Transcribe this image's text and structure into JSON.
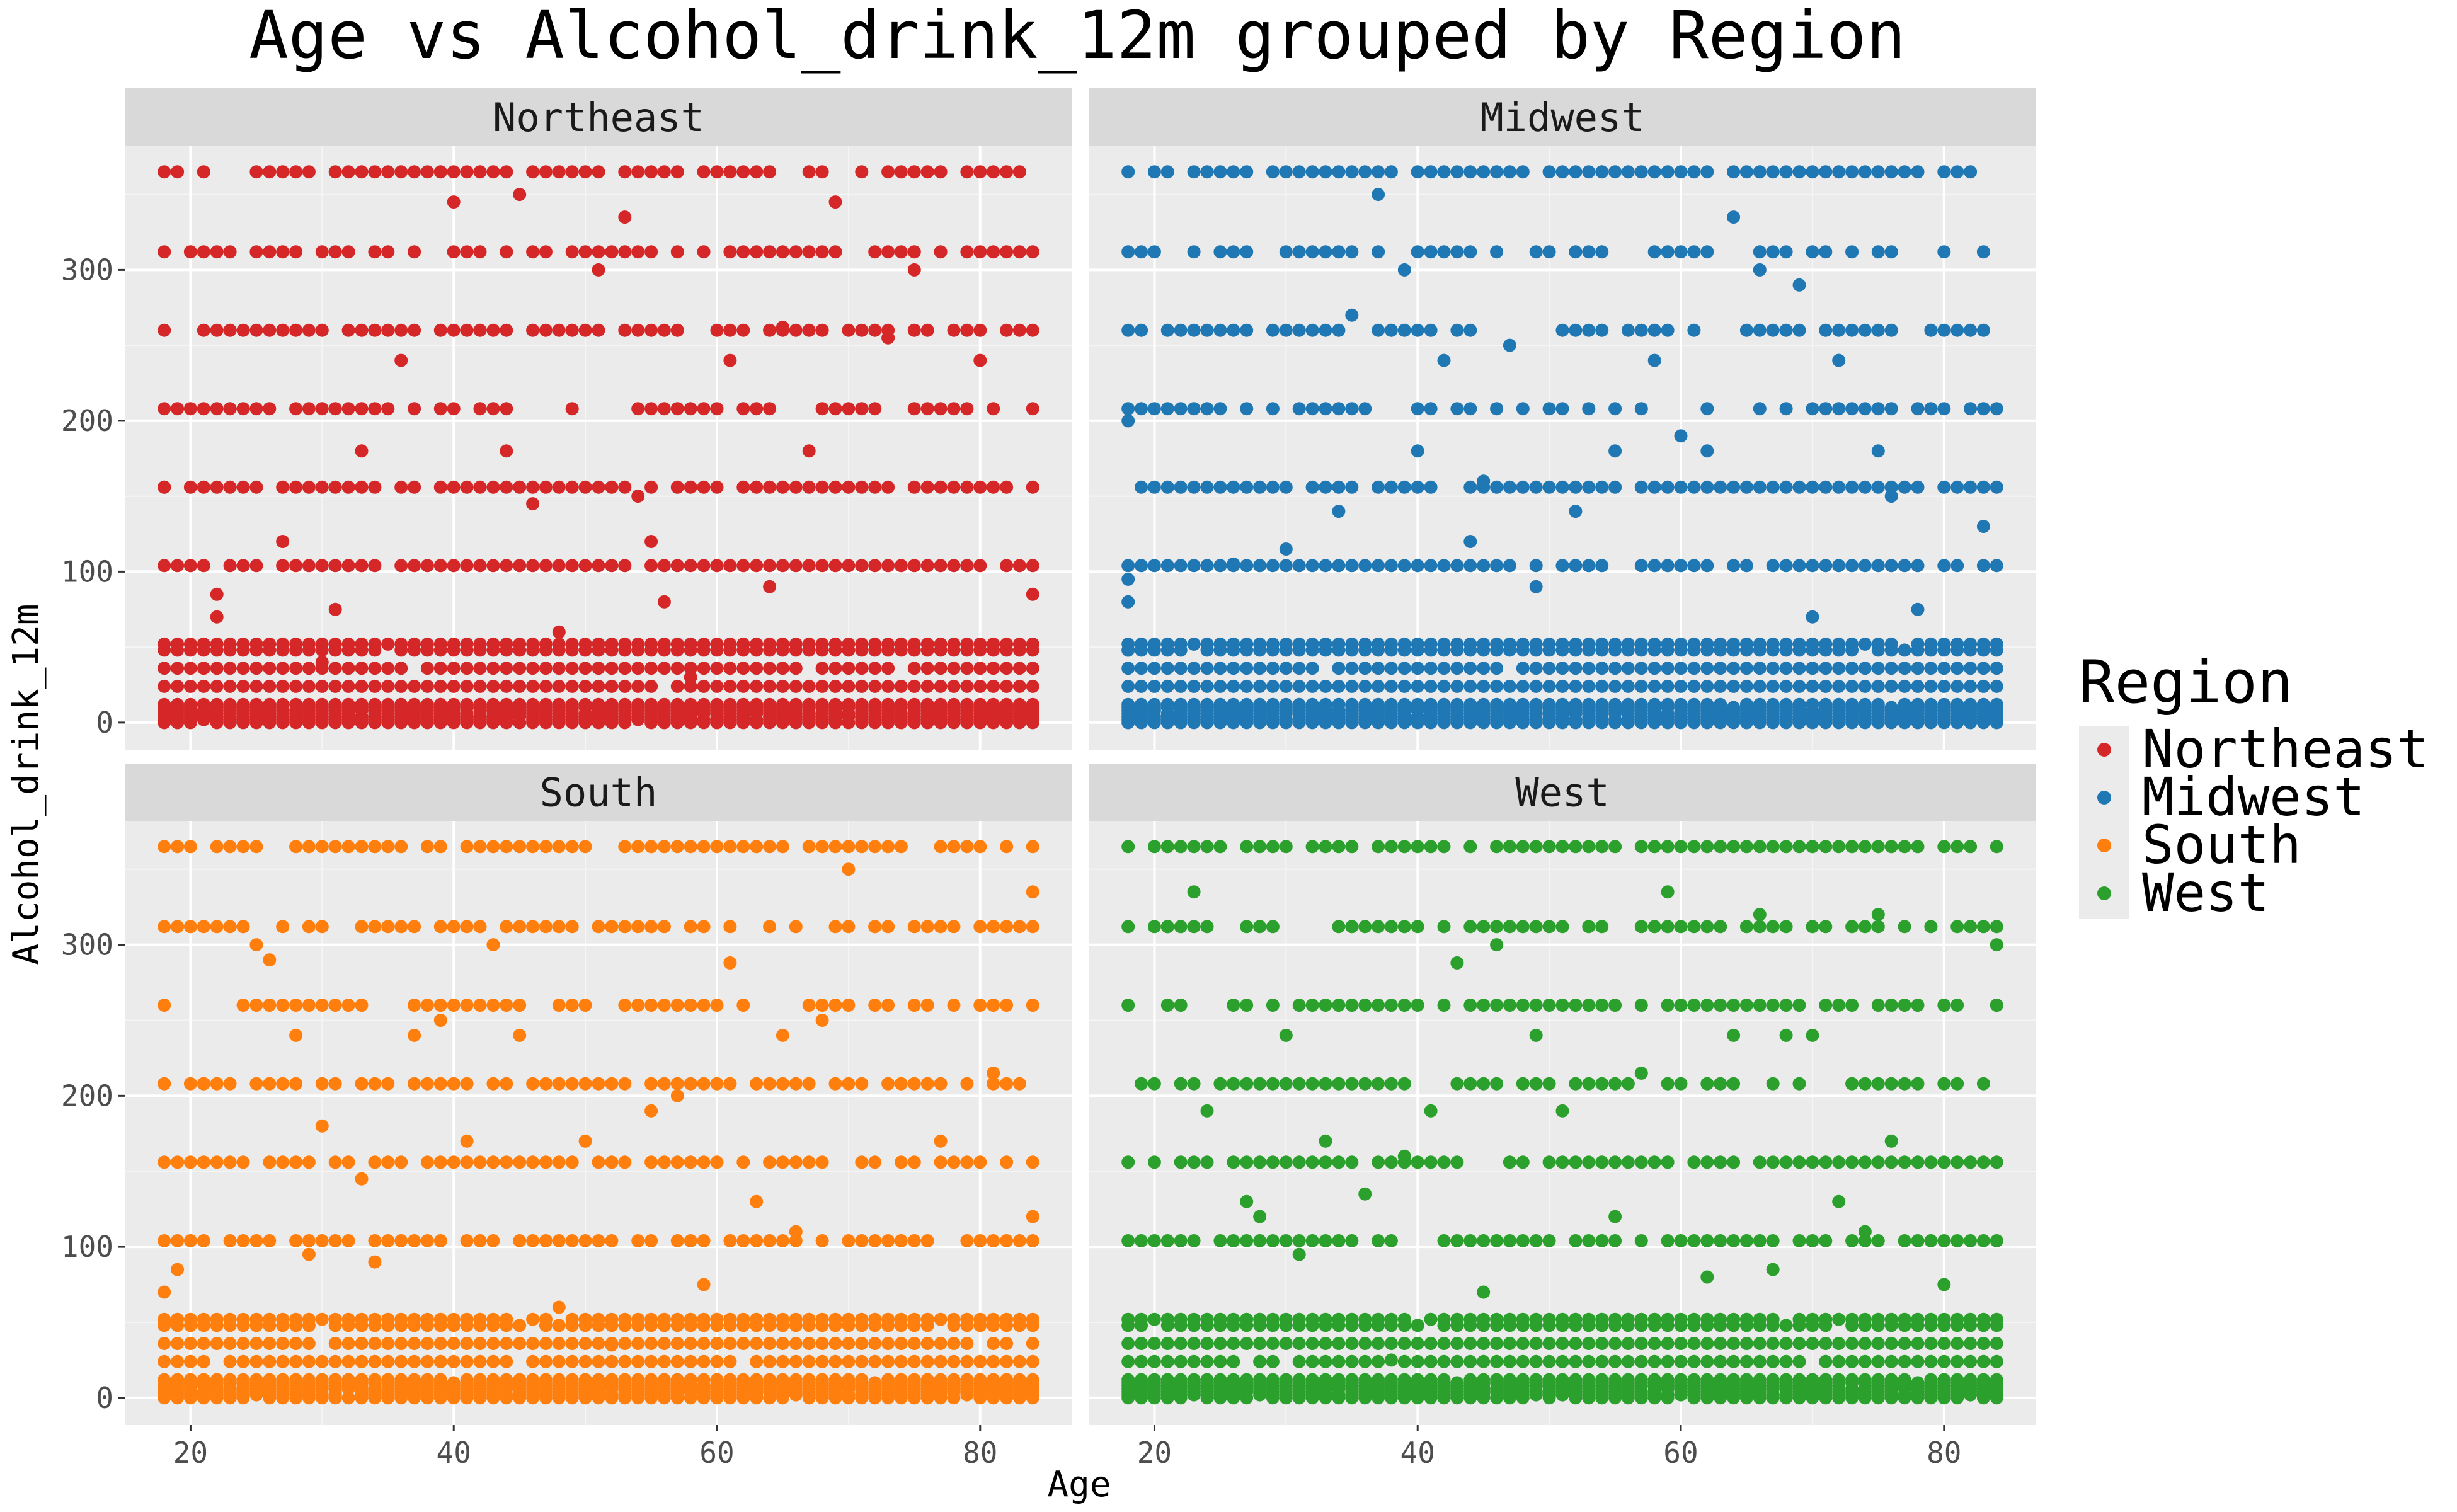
{
  "chart_data": {
    "type": "scatter",
    "title": "Age vs Alcohol_drink_12m grouped by Region",
    "xlabel": "Age",
    "ylabel": "Alcohol_drink_12m",
    "xlim": [
      15,
      87
    ],
    "ylim": [
      -18,
      382
    ],
    "x_ticks": [
      20,
      40,
      60,
      80
    ],
    "y_ticks": [
      0,
      100,
      200,
      300
    ],
    "grid": true,
    "facet_layout": "2x2",
    "legend": {
      "title": "Region",
      "position": "right",
      "entries": [
        "Northeast",
        "Midwest",
        "South",
        "West"
      ]
    },
    "series": [
      {
        "name": "Northeast",
        "color": "#d62728",
        "x_range": [
          18,
          84
        ],
        "levels": [
          0,
          2,
          4,
          6,
          8,
          10,
          12,
          24,
          36,
          48,
          52,
          104,
          156,
          208,
          260,
          312,
          365
        ],
        "extra_points": [
          [
            18,
            156
          ],
          [
            21,
            312
          ],
          [
            22,
            85
          ],
          [
            22,
            70
          ],
          [
            33,
            180
          ],
          [
            36,
            240
          ],
          [
            40,
            365
          ],
          [
            40,
            345
          ],
          [
            44,
            180
          ],
          [
            45,
            350
          ],
          [
            46,
            145
          ],
          [
            51,
            300
          ],
          [
            53,
            335
          ],
          [
            54,
            150
          ],
          [
            56,
            80
          ],
          [
            61,
            240
          ],
          [
            64,
            90
          ],
          [
            67,
            180
          ],
          [
            69,
            345
          ],
          [
            73,
            255
          ],
          [
            80,
            240
          ],
          [
            84,
            85
          ],
          [
            27,
            120
          ],
          [
            31,
            75
          ],
          [
            55,
            120
          ],
          [
            75,
            300
          ],
          [
            48,
            60
          ],
          [
            65,
            262
          ],
          [
            30,
            40
          ],
          [
            58,
            30
          ]
        ]
      },
      {
        "name": "Midwest",
        "color": "#1f77b4",
        "x_range": [
          18,
          84
        ],
        "levels": [
          0,
          2,
          4,
          6,
          8,
          10,
          12,
          24,
          36,
          48,
          52,
          104,
          156,
          208,
          260,
          312,
          365
        ],
        "extra_points": [
          [
            18,
            48
          ],
          [
            18,
            80
          ],
          [
            18,
            95
          ],
          [
            18,
            200
          ],
          [
            20,
            208
          ],
          [
            34,
            140
          ],
          [
            35,
            270
          ],
          [
            36,
            365
          ],
          [
            37,
            350
          ],
          [
            39,
            300
          ],
          [
            40,
            180
          ],
          [
            42,
            240
          ],
          [
            44,
            120
          ],
          [
            47,
            250
          ],
          [
            52,
            140
          ],
          [
            55,
            180
          ],
          [
            58,
            240
          ],
          [
            60,
            190
          ],
          [
            62,
            180
          ],
          [
            64,
            335
          ],
          [
            66,
            300
          ],
          [
            69,
            290
          ],
          [
            72,
            240
          ],
          [
            75,
            180
          ],
          [
            76,
            150
          ],
          [
            78,
            75
          ],
          [
            83,
            130
          ],
          [
            26,
            105
          ],
          [
            49,
            90
          ],
          [
            70,
            70
          ],
          [
            45,
            160
          ],
          [
            30,
            115
          ]
        ]
      },
      {
        "name": "South",
        "color": "#ff7f0e",
        "x_range": [
          18,
          84
        ],
        "levels": [
          0,
          2,
          4,
          6,
          8,
          10,
          12,
          24,
          36,
          48,
          52,
          104,
          156,
          208,
          260,
          312,
          365
        ],
        "extra_points": [
          [
            18,
            70
          ],
          [
            18,
            50
          ],
          [
            19,
            85
          ],
          [
            21,
            208
          ],
          [
            24,
            312
          ],
          [
            25,
            300
          ],
          [
            26,
            290
          ],
          [
            28,
            240
          ],
          [
            30,
            180
          ],
          [
            33,
            145
          ],
          [
            37,
            240
          ],
          [
            39,
            250
          ],
          [
            41,
            170
          ],
          [
            43,
            300
          ],
          [
            45,
            240
          ],
          [
            50,
            170
          ],
          [
            55,
            190
          ],
          [
            57,
            200
          ],
          [
            61,
            288
          ],
          [
            63,
            130
          ],
          [
            65,
            240
          ],
          [
            68,
            250
          ],
          [
            70,
            350
          ],
          [
            72,
            312
          ],
          [
            77,
            170
          ],
          [
            81,
            215
          ],
          [
            84,
            335
          ],
          [
            84,
            120
          ],
          [
            34,
            90
          ],
          [
            48,
            60
          ],
          [
            59,
            75
          ],
          [
            66,
            110
          ],
          [
            52,
            35
          ],
          [
            29,
            95
          ]
        ]
      },
      {
        "name": "West",
        "color": "#2ca02c",
        "x_range": [
          18,
          84
        ],
        "levels": [
          0,
          2,
          4,
          6,
          8,
          10,
          12,
          24,
          36,
          48,
          52,
          104,
          156,
          208,
          260,
          312,
          365
        ],
        "extra_points": [
          [
            21,
            312
          ],
          [
            23,
            335
          ],
          [
            24,
            190
          ],
          [
            27,
            130
          ],
          [
            28,
            120
          ],
          [
            30,
            240
          ],
          [
            33,
            170
          ],
          [
            36,
            135
          ],
          [
            39,
            160
          ],
          [
            41,
            190
          ],
          [
            43,
            288
          ],
          [
            46,
            300
          ],
          [
            49,
            240
          ],
          [
            51,
            190
          ],
          [
            53,
            50
          ],
          [
            57,
            215
          ],
          [
            59,
            335
          ],
          [
            62,
            80
          ],
          [
            64,
            240
          ],
          [
            66,
            320
          ],
          [
            68,
            240
          ],
          [
            70,
            240
          ],
          [
            72,
            130
          ],
          [
            75,
            320
          ],
          [
            76,
            170
          ],
          [
            84,
            300
          ],
          [
            84,
            260
          ],
          [
            31,
            95
          ],
          [
            45,
            70
          ],
          [
            55,
            120
          ],
          [
            67,
            85
          ],
          [
            80,
            75
          ],
          [
            38,
            25
          ],
          [
            74,
            110
          ]
        ]
      }
    ]
  }
}
